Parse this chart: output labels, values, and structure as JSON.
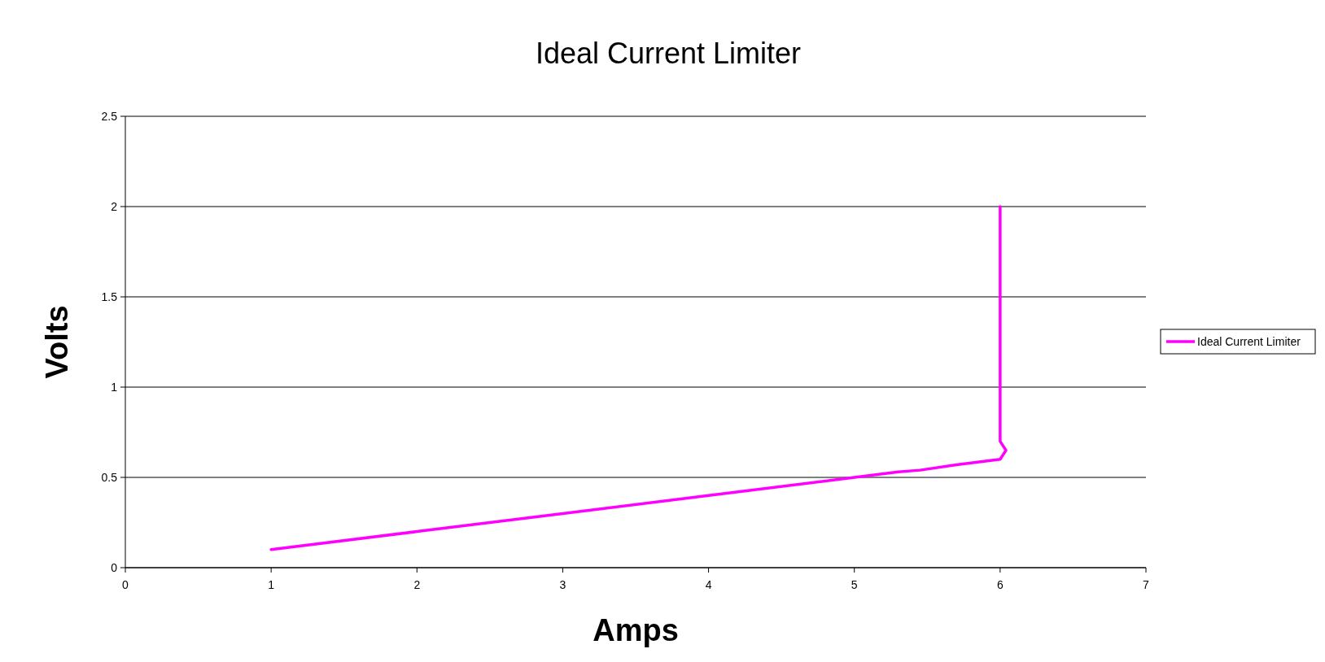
{
  "chart_data": {
    "type": "line",
    "title": "Ideal Current Limiter",
    "xlabel": "Amps",
    "ylabel": "Volts",
    "xlim": [
      0,
      7
    ],
    "xticks": [
      0,
      1,
      2,
      3,
      4,
      5,
      6,
      7
    ],
    "ylim": [
      0,
      2.5
    ],
    "yticks": [
      0,
      0.5,
      1,
      1.5,
      2,
      2.5
    ],
    "grid": "y",
    "legend": "right",
    "marker": "none",
    "line_style": "solid",
    "series": [
      {
        "name": "Ideal Current Limiter",
        "color": "#ff00ff",
        "x": [
          1,
          2,
          3,
          4,
          5,
          5.3,
          5.45,
          5.7,
          6,
          6.04,
          6,
          6
        ],
        "values": [
          0.1,
          0.2,
          0.3,
          0.4,
          0.5,
          0.53,
          0.54,
          0.57,
          0.6,
          0.65,
          0.7,
          2
        ]
      }
    ]
  }
}
